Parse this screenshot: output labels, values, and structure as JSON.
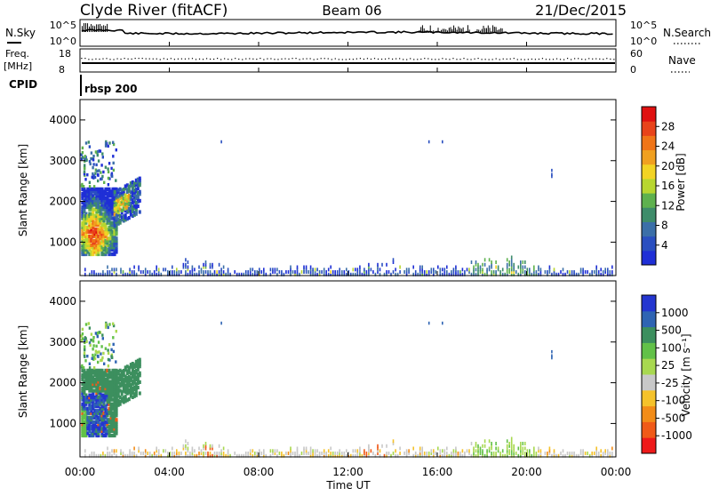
{
  "header": {
    "station": "Clyde River (fitACF)",
    "beam": "Beam 06",
    "date": "21/Dec/2015"
  },
  "top_panels": {
    "nsky": {
      "left_label": "N.Sky",
      "right_label": "N.Search",
      "left_ticks": [
        "10^5",
        "10^0"
      ],
      "right_ticks": [
        "10^5",
        "10^0"
      ]
    },
    "freq": {
      "left_label": "Freq.",
      "left_unit": "[MHz]",
      "right_label": "Nave",
      "left_ticks": [
        "18",
        "8"
      ],
      "right_ticks": [
        "60",
        "0"
      ]
    },
    "cpid": {
      "label": "CPID",
      "value": "rbsp 200"
    }
  },
  "colors": {
    "power_scale": [
      "#1f2fd6",
      "#2a4fc0",
      "#3b6fa8",
      "#3e8c6a",
      "#5eb14e",
      "#b8d630",
      "#f2d324",
      "#f0a020",
      "#f07518",
      "#e8431a",
      "#e01010"
    ],
    "velocity_scale": [
      "#ee1a1a",
      "#f05a18",
      "#f28c18",
      "#f5c22a",
      "#c8c8c8",
      "#a8d850",
      "#62c148",
      "#3c8f5e",
      "#2f64b3",
      "#2436d0"
    ]
  },
  "chart_data": [
    {
      "type": "heatmap",
      "name": "power",
      "ylabel": "Slant Range [km]",
      "ylim": [
        180,
        4500
      ],
      "y_ticks": [
        1000,
        2000,
        3000,
        4000
      ],
      "colorbar_label": "Power [dB]",
      "colorbar_ticks": [
        "4",
        "8",
        "12",
        "16",
        "20",
        "24",
        "28"
      ],
      "colorbar_range": [
        0,
        32
      ]
    },
    {
      "type": "heatmap",
      "name": "velocity",
      "ylabel": "Slant Range [km]",
      "ylim": [
        180,
        4500
      ],
      "y_ticks": [
        1000,
        2000,
        3000,
        4000
      ],
      "xlabel": "Time UT",
      "x_ticks": [
        "00:00",
        "04:00",
        "08:00",
        "12:00",
        "16:00",
        "20:00",
        "00:00"
      ],
      "colorbar_label": "Velocity [m s⁻¹]",
      "colorbar_ticks": [
        "1000",
        "500",
        "100",
        "25",
        "-25",
        "-100",
        "-500",
        "-1000"
      ]
    }
  ]
}
